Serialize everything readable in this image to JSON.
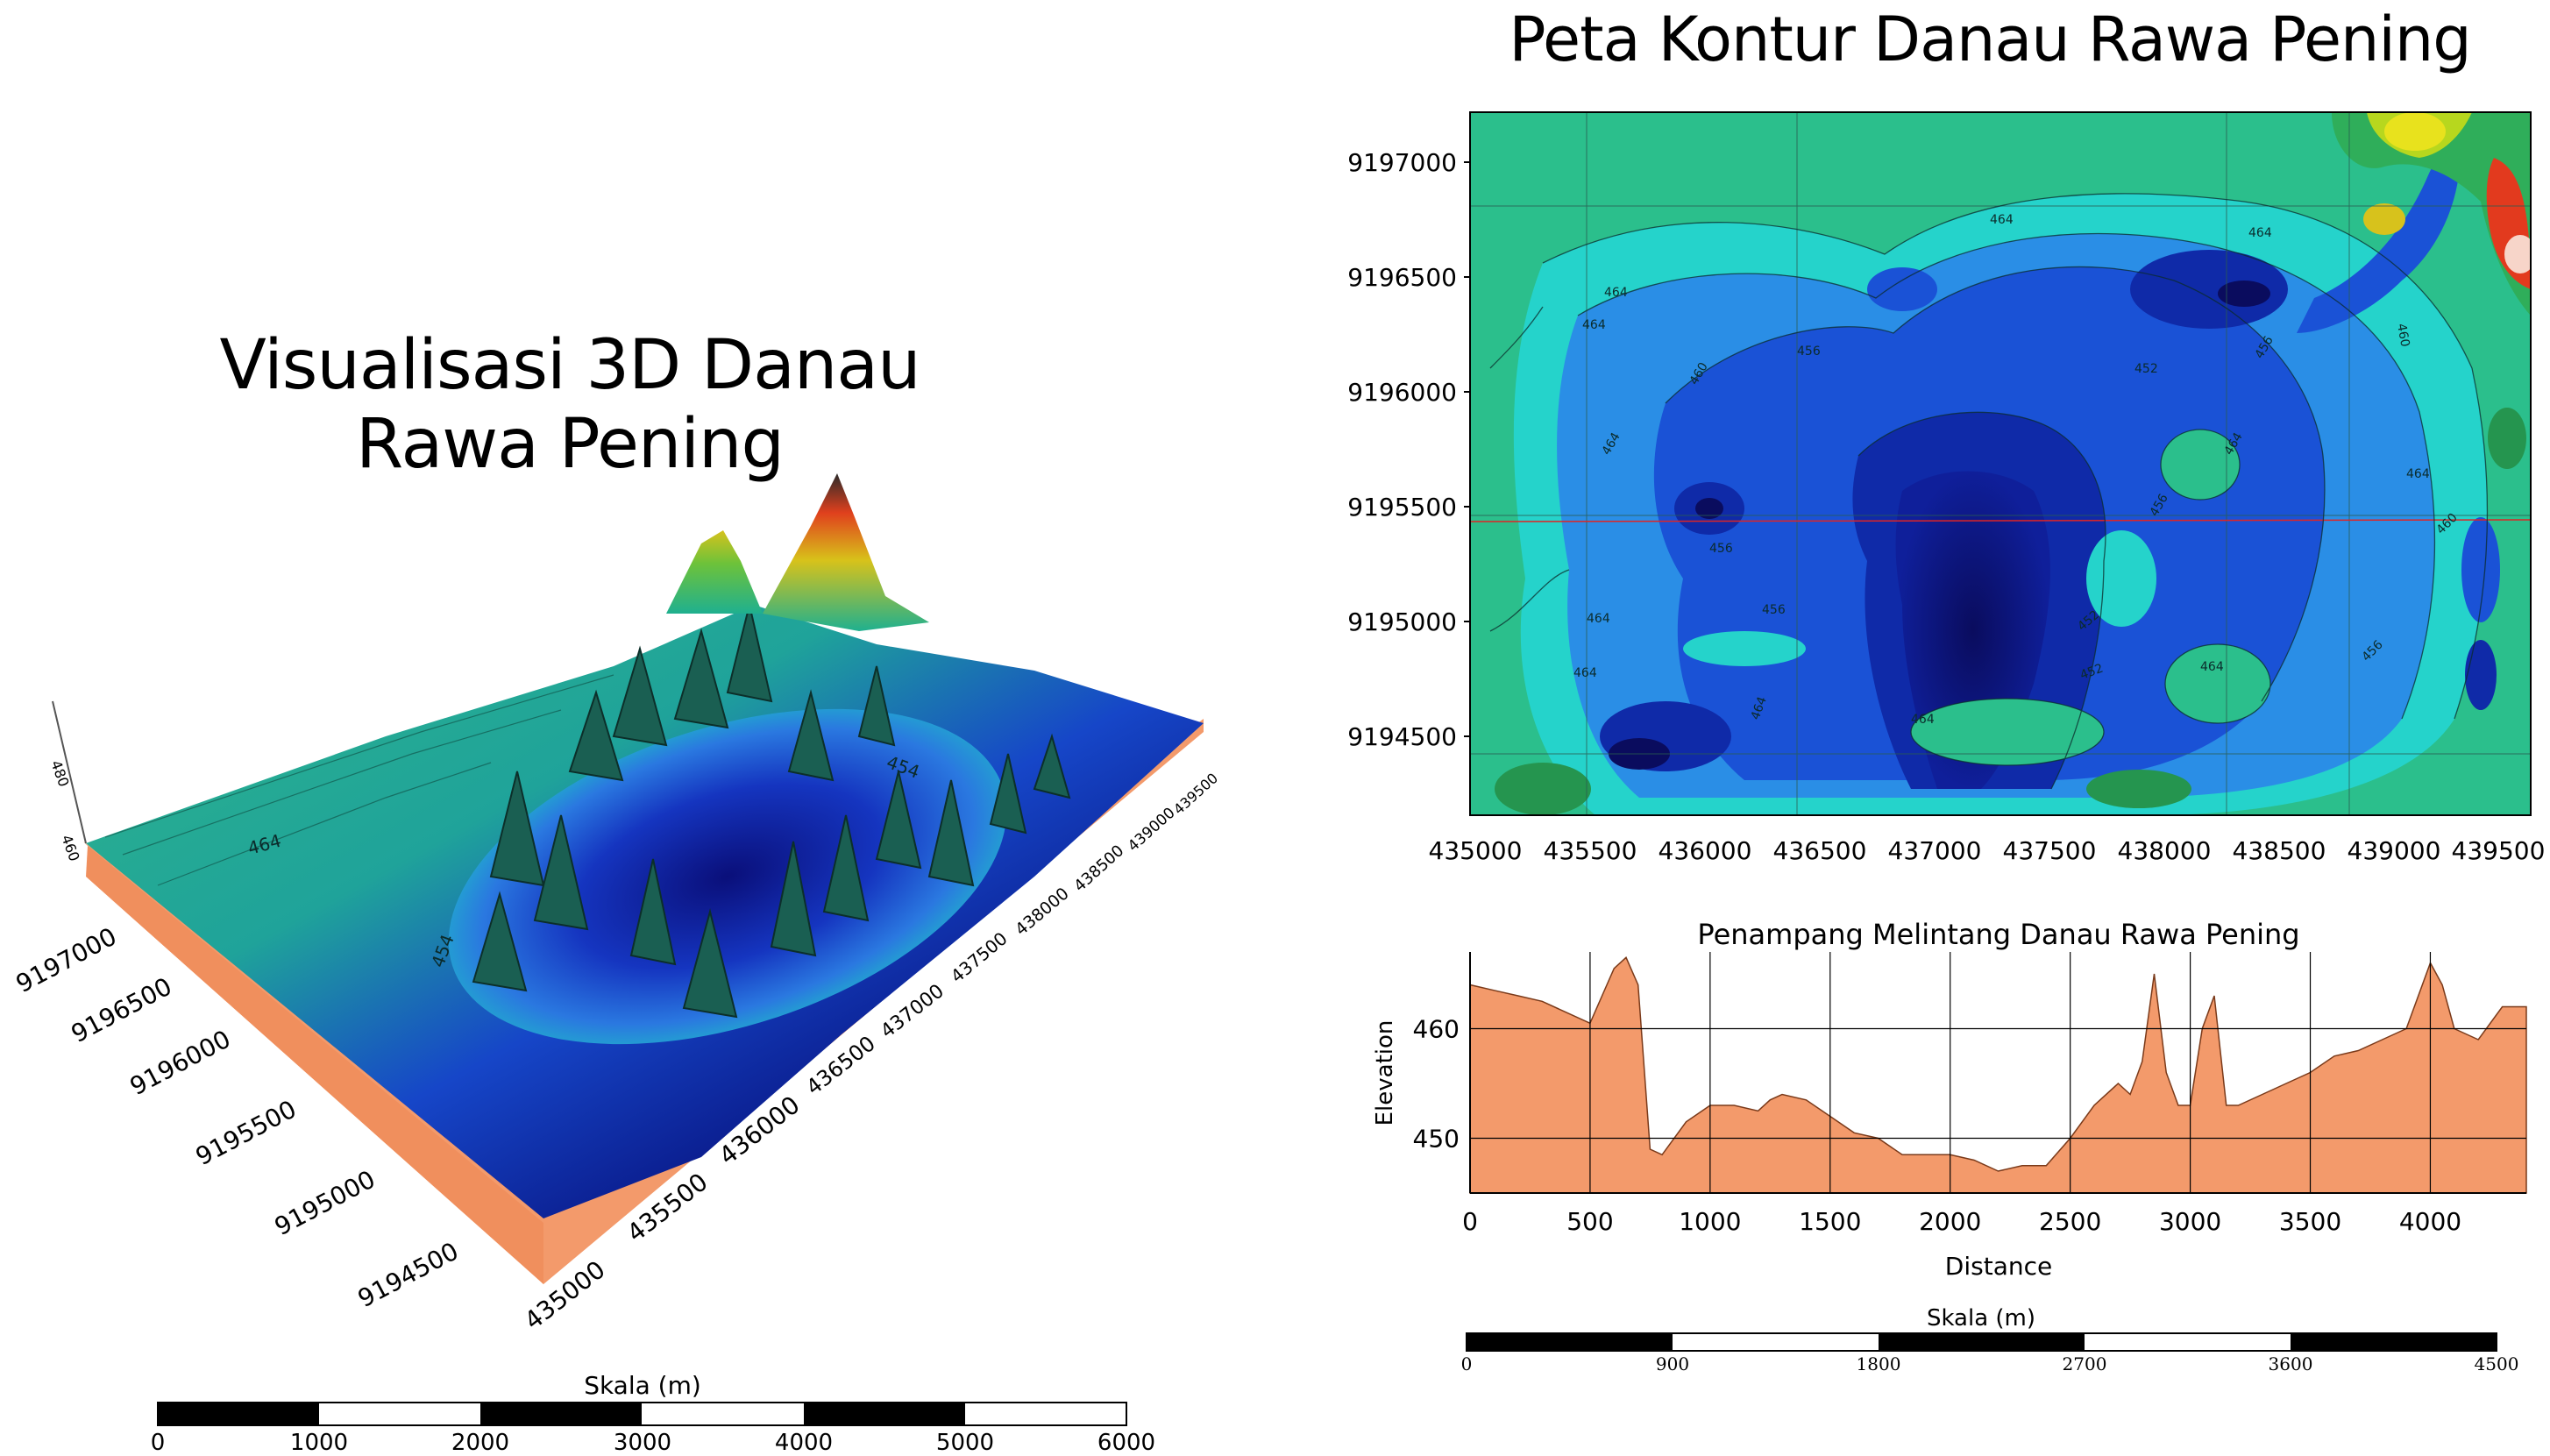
{
  "left_panel": {
    "title": "Visualisasi 3D Danau Rawa Pening",
    "northing_ticks": [
      "9197000",
      "9196500",
      "9196000",
      "9195500",
      "9195000",
      "9194500"
    ],
    "easting_ticks": [
      "435000",
      "435500",
      "436000",
      "436500",
      "437000",
      "437500",
      "438000",
      "438500",
      "439000",
      "439500"
    ],
    "z_ticks": [
      "460",
      "480"
    ],
    "contour_labels": [
      "464",
      "454",
      "454"
    ],
    "scale": {
      "title": "Skala (m)",
      "ticks": [
        "0",
        "1000",
        "2000",
        "3000",
        "4000",
        "5000",
        "6000"
      ]
    }
  },
  "right_panel": {
    "title": "Peta Kontur Danau Rawa Pening",
    "y_ticks": [
      "9197000",
      "9196500",
      "9196000",
      "9195500",
      "9195000",
      "9194500"
    ],
    "x_ticks": [
      "435000",
      "435500",
      "436000",
      "436500",
      "437000",
      "437500",
      "438000",
      "438500",
      "439000",
      "439500"
    ],
    "contour_labels": [
      "464",
      "464",
      "464",
      "464",
      "456",
      "460",
      "456",
      "452",
      "464",
      "460",
      "456",
      "464",
      "456",
      "464",
      "464",
      "456",
      "452",
      "456",
      "452",
      "464",
      "464",
      "464",
      "464",
      "460"
    ],
    "scale": {
      "title": "Skala (m)",
      "ticks": [
        "0",
        "900",
        "1800",
        "2700",
        "3600",
        "4500"
      ]
    }
  },
  "profile": {
    "title": "Penampang Melintang Danau Rawa Pening",
    "xlabel": "Distance",
    "ylabel": "Elevation",
    "x_ticks": [
      "0",
      "500",
      "1000",
      "1500",
      "2000",
      "2500",
      "3000",
      "3500",
      "4000"
    ],
    "y_ticks": [
      "450",
      "460"
    ]
  },
  "chart_data": {
    "type": "area",
    "title": "Penampang Melintang Danau Rawa Pening",
    "xlabel": "Distance",
    "ylabel": "Elevation",
    "xlim": [
      0,
      4400
    ],
    "ylim": [
      445,
      467
    ],
    "x": [
      0,
      100,
      200,
      300,
      400,
      500,
      550,
      600,
      650,
      700,
      750,
      800,
      900,
      1000,
      1100,
      1200,
      1250,
      1300,
      1400,
      1500,
      1600,
      1700,
      1800,
      1900,
      2000,
      2100,
      2200,
      2300,
      2400,
      2500,
      2600,
      2700,
      2750,
      2800,
      2850,
      2900,
      2950,
      3000,
      3050,
      3100,
      3150,
      3200,
      3300,
      3400,
      3500,
      3600,
      3700,
      3800,
      3900,
      4000,
      4050,
      4100,
      4200,
      4300,
      4400
    ],
    "series": [
      {
        "values": [
          464,
          463.5,
          463,
          462.5,
          461.5,
          460.5,
          463,
          465.5,
          466.5,
          464,
          449,
          448.5,
          451.5,
          453,
          453,
          452.5,
          453.5,
          454,
          453.5,
          452,
          450.5,
          450,
          448.5,
          448.5,
          448.5,
          448,
          447,
          447.5,
          447.5,
          450,
          453,
          455,
          454,
          457,
          465,
          456,
          453,
          453,
          460,
          463,
          453,
          453,
          454,
          455,
          456,
          457.5,
          458,
          459,
          460,
          466,
          464,
          460,
          459,
          462,
          462
        ]
      }
    ]
  }
}
